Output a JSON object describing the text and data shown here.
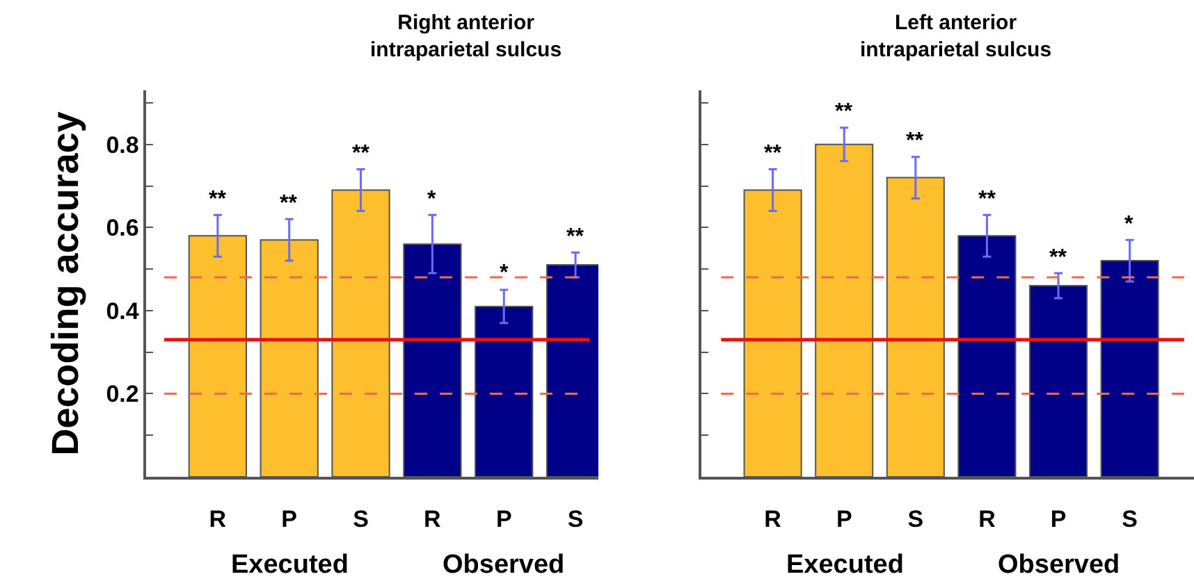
{
  "chart_data": [
    {
      "type": "bar",
      "title": "Right anterior\nintraparietal sulcus",
      "ylabel": "Decoding accuracy",
      "categories": [
        "R",
        "P",
        "S",
        "R",
        "P",
        "S"
      ],
      "values": [
        0.58,
        0.57,
        0.69,
        0.56,
        0.41,
        0.51
      ],
      "colors": [
        "#fdbf2d",
        "#fdbf2d",
        "#fdbf2d",
        "#000088",
        "#000088",
        "#000088"
      ],
      "errors": [
        0.05,
        0.05,
        0.05,
        0.07,
        0.04,
        0.03
      ],
      "value_labels": [
        "**",
        "**",
        "**",
        "*",
        "*",
        "**"
      ],
      "ylim": [
        0,
        0.93
      ],
      "yticks": [
        {
          "value": 0.1,
          "label": null
        },
        0.2,
        {
          "value": 0.3,
          "label": null
        },
        0.4,
        {
          "value": 0.5,
          "label": null
        },
        0.6,
        {
          "value": 0.7,
          "label": null
        },
        0.8,
        {
          "value": 0.9,
          "label": null
        }
      ],
      "ref_lines": [
        {
          "axis": "y",
          "value": 0.33,
          "color": "#ee1111",
          "line_style": "solid"
        },
        {
          "axis": "y",
          "value": 0.48,
          "color": "#f06a4a",
          "line_style": "dashed"
        },
        {
          "axis": "y",
          "value": 0.2,
          "color": "#f06a4a",
          "line_style": "dashed"
        }
      ],
      "annotations": [
        "Executed",
        "Observed"
      ]
    },
    {
      "type": "bar",
      "title": "Left anterior\nintraparietal sulcus",
      "categories": [
        "R",
        "P",
        "S",
        "R",
        "P",
        "S"
      ],
      "values": [
        0.69,
        0.8,
        0.72,
        0.58,
        0.46,
        0.52
      ],
      "colors": [
        "#fdbf2d",
        "#fdbf2d",
        "#fdbf2d",
        "#000088",
        "#000088",
        "#000088"
      ],
      "errors": [
        0.05,
        0.04,
        0.05,
        0.05,
        0.03,
        0.05
      ],
      "value_labels": [
        "**",
        "**",
        "**",
        "**",
        "**",
        "*"
      ],
      "yticks": [
        {
          "value": 0.1,
          "label": null
        },
        0.2,
        {
          "value": 0.3,
          "label": null
        },
        0.4,
        {
          "value": 0.5,
          "label": null
        },
        0.6,
        {
          "value": 0.7,
          "label": null
        },
        0.8,
        {
          "value": 0.9,
          "label": null
        }
      ],
      "ref_lines": [
        {
          "axis": "y",
          "value": 0.33,
          "color": "#ee1111",
          "line_style": "solid"
        },
        {
          "axis": "y",
          "value": 0.48,
          "color": "#f06a4a",
          "line_style": "dashed"
        },
        {
          "axis": "y",
          "value": 0.2,
          "color": "#f06a4a",
          "line_style": "dashed"
        }
      ],
      "annotations": [
        "Executed",
        "Observed"
      ],
      "tick_labels": "x"
    }
  ]
}
